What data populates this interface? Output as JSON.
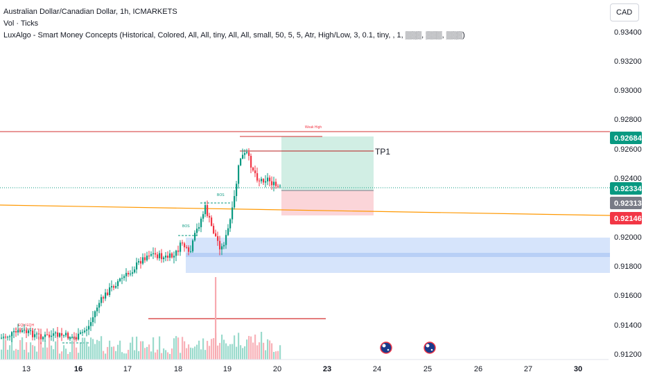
{
  "legend": {
    "symbol": "Australian Dollar/Canadian Dollar, 1h, ICMARKETS",
    "volume": "Vol · Ticks",
    "indicator": "LuxAlgo - Smart Money Concepts (Historical, Colored, All, All, tiny, All, All, small, 50, 5, 5, Atr, High/Low, 3, 0.1, tiny, , 1, ▒▒▒, ▒▒▒, ▒▒▒)"
  },
  "currency_button": "CAD",
  "price_axis": [
    "0.93400",
    "0.93200",
    "0.93000",
    "0.92800",
    "0.92600",
    "0.92400",
    "0.92000",
    "0.91800",
    "0.91600",
    "0.91400",
    "0.91200"
  ],
  "price_tags": [
    {
      "label": "0.92684",
      "color": "#089981"
    },
    {
      "label": "0.92334",
      "color": "#089981"
    },
    {
      "label": "0.92313",
      "color": "#787b86"
    },
    {
      "label": "0.92146",
      "color": "#f23645"
    }
  ],
  "time_axis": [
    {
      "label": "13",
      "bold": false
    },
    {
      "label": "16",
      "bold": true
    },
    {
      "label": "17",
      "bold": false
    },
    {
      "label": "18",
      "bold": false
    },
    {
      "label": "19",
      "bold": false
    },
    {
      "label": "20",
      "bold": false
    },
    {
      "label": "23",
      "bold": true
    },
    {
      "label": "24",
      "bold": false
    },
    {
      "label": "25",
      "bold": false
    },
    {
      "label": "26",
      "bold": false
    },
    {
      "label": "27",
      "bold": false
    },
    {
      "label": "30",
      "bold": true
    }
  ],
  "annotations": {
    "tp1": "TP1",
    "weak_high": "Weak High",
    "bos_labels": [
      "BOS",
      "BOS",
      "BOS"
    ],
    "eqh_label": "EQH EQH"
  },
  "colors": {
    "up": "#089981",
    "down": "#f23645",
    "orange_line": "#ff9800",
    "target_zone": "#d1eee4",
    "stop_zone": "#fbd5d9",
    "order_block": "#d6e4fb"
  }
}
